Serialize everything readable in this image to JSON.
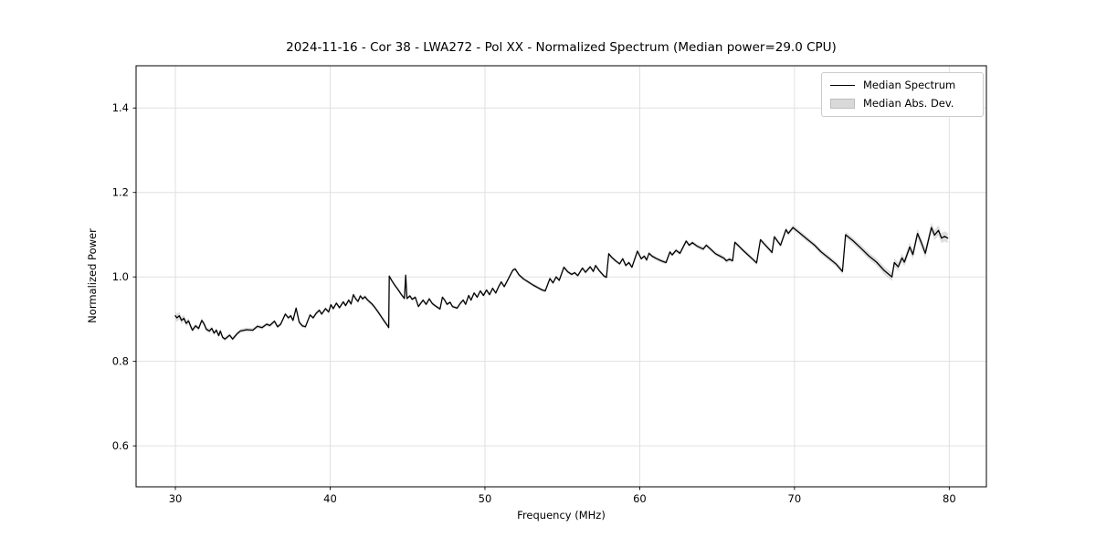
{
  "figure": {
    "title": "2024-11-16 - Cor 38 - LWA272 - Pol XX - Normalized Spectrum (Median power=29.0 CPU)"
  },
  "chart_data": {
    "type": "line",
    "title": "2024-11-16 - Cor 38 - LWA272 - Pol XX - Normalized Spectrum (Median power=29.0 CPU)",
    "xlabel": "Frequency (MHz)",
    "ylabel": "Normalized Power",
    "xlim": [
      27.46,
      82.4
    ],
    "ylim": [
      0.503,
      1.5
    ],
    "grid": true,
    "grid_color": "#e0e0e0",
    "line_color": "#000000",
    "band_color": "#b5b5b5",
    "xticks": {
      "values": [
        30,
        40,
        50,
        60,
        70,
        80
      ],
      "labels": [
        "30",
        "40",
        "50",
        "60",
        "70",
        "80"
      ]
    },
    "yticks": {
      "values": [
        0.6,
        0.8,
        1.0,
        1.2,
        1.4
      ],
      "labels": [
        "0.6",
        "0.8",
        "1.0",
        "1.2",
        "1.4"
      ]
    },
    "legend": {
      "position": "upper right",
      "entries": [
        {
          "label": "Median Spectrum",
          "type": "line",
          "color": "#000000"
        },
        {
          "label": "Median Abs. Dev.",
          "type": "patch",
          "color": "#d9d9d9"
        }
      ]
    },
    "series": [
      {
        "name": "Median Spectrum",
        "points": [
          [
            30.0,
            0.908
          ],
          [
            30.1,
            0.903
          ],
          [
            30.25,
            0.908
          ],
          [
            30.4,
            0.897
          ],
          [
            30.55,
            0.902
          ],
          [
            30.7,
            0.89
          ],
          [
            30.85,
            0.896
          ],
          [
            31.0,
            0.882
          ],
          [
            31.1,
            0.874
          ],
          [
            31.3,
            0.884
          ],
          [
            31.5,
            0.878
          ],
          [
            31.7,
            0.897
          ],
          [
            31.85,
            0.889
          ],
          [
            32.0,
            0.876
          ],
          [
            32.2,
            0.872
          ],
          [
            32.35,
            0.878
          ],
          [
            32.5,
            0.867
          ],
          [
            32.65,
            0.874
          ],
          [
            32.8,
            0.861
          ],
          [
            32.9,
            0.872
          ],
          [
            33.05,
            0.857
          ],
          [
            33.2,
            0.853
          ],
          [
            33.5,
            0.862
          ],
          [
            33.7,
            0.853
          ],
          [
            34.0,
            0.866
          ],
          [
            34.2,
            0.872
          ],
          [
            34.6,
            0.875
          ],
          [
            35.0,
            0.874
          ],
          [
            35.3,
            0.883
          ],
          [
            35.6,
            0.88
          ],
          [
            35.9,
            0.888
          ],
          [
            36.1,
            0.885
          ],
          [
            36.4,
            0.895
          ],
          [
            36.6,
            0.882
          ],
          [
            36.8,
            0.888
          ],
          [
            37.1,
            0.912
          ],
          [
            37.3,
            0.903
          ],
          [
            37.45,
            0.908
          ],
          [
            37.6,
            0.897
          ],
          [
            37.8,
            0.926
          ],
          [
            38.0,
            0.893
          ],
          [
            38.2,
            0.884
          ],
          [
            38.4,
            0.882
          ],
          [
            38.7,
            0.91
          ],
          [
            38.9,
            0.903
          ],
          [
            39.1,
            0.914
          ],
          [
            39.3,
            0.921
          ],
          [
            39.45,
            0.912
          ],
          [
            39.7,
            0.925
          ],
          [
            39.9,
            0.917
          ],
          [
            40.05,
            0.934
          ],
          [
            40.2,
            0.925
          ],
          [
            40.4,
            0.938
          ],
          [
            40.6,
            0.927
          ],
          [
            40.85,
            0.941
          ],
          [
            41.0,
            0.932
          ],
          [
            41.2,
            0.945
          ],
          [
            41.35,
            0.936
          ],
          [
            41.5,
            0.958
          ],
          [
            41.65,
            0.948
          ],
          [
            41.8,
            0.942
          ],
          [
            41.95,
            0.955
          ],
          [
            42.1,
            0.948
          ],
          [
            42.25,
            0.953
          ],
          [
            42.4,
            0.946
          ],
          [
            42.55,
            0.941
          ],
          [
            42.7,
            0.936
          ],
          [
            42.9,
            0.927
          ],
          [
            43.1,
            0.917
          ],
          [
            43.3,
            0.906
          ],
          [
            43.5,
            0.895
          ],
          [
            43.7,
            0.885
          ],
          [
            43.78,
            0.88
          ],
          [
            43.82,
            1.002
          ],
          [
            44.0,
            0.99
          ],
          [
            44.2,
            0.979
          ],
          [
            44.4,
            0.969
          ],
          [
            44.6,
            0.958
          ],
          [
            44.8,
            0.949
          ],
          [
            44.88,
            1.004
          ],
          [
            44.96,
            0.949
          ],
          [
            45.15,
            0.955
          ],
          [
            45.3,
            0.947
          ],
          [
            45.5,
            0.952
          ],
          [
            45.7,
            0.93
          ],
          [
            46.0,
            0.945
          ],
          [
            46.2,
            0.935
          ],
          [
            46.4,
            0.948
          ],
          [
            46.6,
            0.937
          ],
          [
            46.85,
            0.93
          ],
          [
            47.1,
            0.924
          ],
          [
            47.25,
            0.952
          ],
          [
            47.4,
            0.945
          ],
          [
            47.55,
            0.935
          ],
          [
            47.75,
            0.94
          ],
          [
            47.9,
            0.93
          ],
          [
            48.2,
            0.926
          ],
          [
            48.4,
            0.937
          ],
          [
            48.6,
            0.945
          ],
          [
            48.75,
            0.935
          ],
          [
            48.95,
            0.956
          ],
          [
            49.1,
            0.945
          ],
          [
            49.3,
            0.962
          ],
          [
            49.5,
            0.952
          ],
          [
            49.7,
            0.967
          ],
          [
            49.9,
            0.956
          ],
          [
            50.1,
            0.969
          ],
          [
            50.3,
            0.958
          ],
          [
            50.5,
            0.973
          ],
          [
            50.7,
            0.962
          ],
          [
            50.9,
            0.978
          ],
          [
            51.05,
            0.988
          ],
          [
            51.25,
            0.977
          ],
          [
            51.55,
            0.998
          ],
          [
            51.8,
            1.016
          ],
          [
            51.95,
            1.019
          ],
          [
            52.2,
            1.005
          ],
          [
            52.5,
            0.995
          ],
          [
            52.8,
            0.988
          ],
          [
            53.1,
            0.981
          ],
          [
            53.4,
            0.975
          ],
          [
            53.7,
            0.969
          ],
          [
            53.9,
            0.967
          ],
          [
            54.2,
            0.996
          ],
          [
            54.4,
            0.986
          ],
          [
            54.6,
            1.0
          ],
          [
            54.8,
            0.992
          ],
          [
            55.1,
            1.023
          ],
          [
            55.35,
            1.012
          ],
          [
            55.6,
            1.006
          ],
          [
            55.8,
            1.01
          ],
          [
            56.0,
            1.003
          ],
          [
            56.3,
            1.021
          ],
          [
            56.5,
            1.011
          ],
          [
            56.8,
            1.024
          ],
          [
            57.0,
            1.013
          ],
          [
            57.15,
            1.027
          ],
          [
            57.4,
            1.014
          ],
          [
            57.7,
            1.002
          ],
          [
            57.85,
            0.999
          ],
          [
            58.0,
            1.055
          ],
          [
            58.2,
            1.046
          ],
          [
            58.45,
            1.038
          ],
          [
            58.7,
            1.031
          ],
          [
            58.9,
            1.043
          ],
          [
            59.1,
            1.027
          ],
          [
            59.3,
            1.034
          ],
          [
            59.5,
            1.023
          ],
          [
            59.85,
            1.061
          ],
          [
            60.1,
            1.043
          ],
          [
            60.3,
            1.049
          ],
          [
            60.45,
            1.04
          ],
          [
            60.6,
            1.056
          ],
          [
            60.8,
            1.049
          ],
          [
            61.1,
            1.043
          ],
          [
            61.4,
            1.038
          ],
          [
            61.7,
            1.034
          ],
          [
            61.95,
            1.059
          ],
          [
            62.1,
            1.052
          ],
          [
            62.35,
            1.063
          ],
          [
            62.6,
            1.056
          ],
          [
            63.0,
            1.085
          ],
          [
            63.2,
            1.075
          ],
          [
            63.4,
            1.081
          ],
          [
            63.7,
            1.073
          ],
          [
            64.1,
            1.066
          ],
          [
            64.3,
            1.075
          ],
          [
            64.6,
            1.065
          ],
          [
            64.9,
            1.055
          ],
          [
            65.2,
            1.049
          ],
          [
            65.45,
            1.044
          ],
          [
            65.6,
            1.038
          ],
          [
            65.8,
            1.042
          ],
          [
            66.0,
            1.038
          ],
          [
            66.15,
            1.082
          ],
          [
            66.4,
            1.073
          ],
          [
            66.7,
            1.062
          ],
          [
            67.0,
            1.052
          ],
          [
            67.3,
            1.042
          ],
          [
            67.55,
            1.033
          ],
          [
            67.8,
            1.088
          ],
          [
            68.0,
            1.08
          ],
          [
            68.2,
            1.072
          ],
          [
            68.4,
            1.064
          ],
          [
            68.55,
            1.058
          ],
          [
            68.7,
            1.095
          ],
          [
            68.9,
            1.085
          ],
          [
            69.1,
            1.075
          ],
          [
            69.45,
            1.112
          ],
          [
            69.6,
            1.103
          ],
          [
            69.9,
            1.117
          ],
          [
            70.3,
            1.105
          ],
          [
            70.8,
            1.09
          ],
          [
            71.3,
            1.075
          ],
          [
            71.7,
            1.06
          ],
          [
            72.2,
            1.045
          ],
          [
            72.7,
            1.03
          ],
          [
            73.1,
            1.013
          ],
          [
            73.3,
            1.1
          ],
          [
            73.8,
            1.085
          ],
          [
            74.3,
            1.068
          ],
          [
            74.8,
            1.05
          ],
          [
            75.3,
            1.035
          ],
          [
            75.8,
            1.015
          ],
          [
            76.3,
            1.0
          ],
          [
            76.45,
            1.034
          ],
          [
            76.7,
            1.024
          ],
          [
            76.95,
            1.045
          ],
          [
            77.1,
            1.035
          ],
          [
            77.45,
            1.071
          ],
          [
            77.65,
            1.053
          ],
          [
            77.95,
            1.103
          ],
          [
            78.2,
            1.081
          ],
          [
            78.45,
            1.056
          ],
          [
            78.85,
            1.117
          ],
          [
            79.05,
            1.099
          ],
          [
            79.3,
            1.11
          ],
          [
            79.5,
            1.092
          ],
          [
            79.7,
            1.096
          ],
          [
            79.9,
            1.092
          ]
        ]
      },
      {
        "name": "Median Abs. Dev.",
        "mad_control_points": [
          [
            30.0,
            0.01
          ],
          [
            31.0,
            0.006
          ],
          [
            33.0,
            0.005
          ],
          [
            40.0,
            0.004
          ],
          [
            43.5,
            0.005
          ],
          [
            44.5,
            0.004
          ],
          [
            52.0,
            0.004
          ],
          [
            58.0,
            0.004
          ],
          [
            64.0,
            0.005
          ],
          [
            68.0,
            0.005
          ],
          [
            70.0,
            0.006
          ],
          [
            72.0,
            0.006
          ],
          [
            73.5,
            0.007
          ],
          [
            75.0,
            0.008
          ],
          [
            76.5,
            0.01
          ],
          [
            78.0,
            0.011
          ],
          [
            79.0,
            0.012
          ],
          [
            80.0,
            0.012
          ]
        ]
      }
    ]
  }
}
